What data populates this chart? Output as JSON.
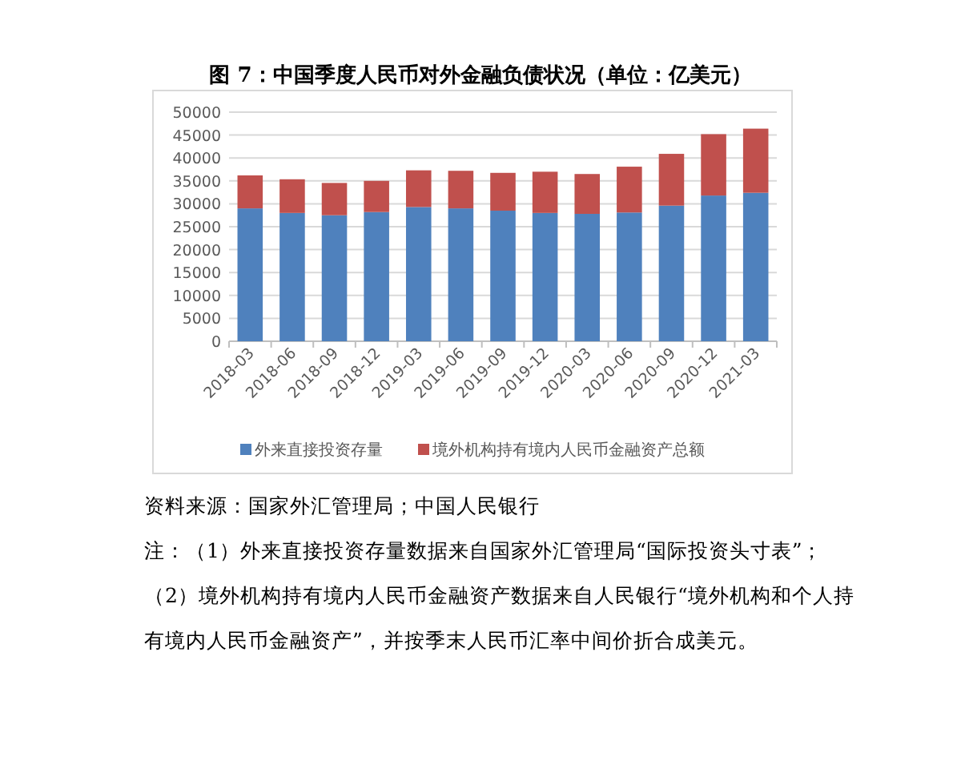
{
  "chart_data": {
    "type": "bar",
    "title": "图 7：中国季度人民币对外金融负债状况（单位：亿美元）",
    "categories": [
      "2018-03",
      "2018-06",
      "2018-09",
      "2018-12",
      "2019-03",
      "2019-06",
      "2019-09",
      "2019-12",
      "2020-03",
      "2020-06",
      "2020-09",
      "2020-12",
      "2021-03"
    ],
    "series": [
      {
        "name": "外来直接投资存量",
        "color": "#4f81bd",
        "values": [
          29000,
          28000,
          27500,
          28200,
          29300,
          29000,
          28500,
          28000,
          27800,
          28100,
          29600,
          31800,
          32400
        ]
      },
      {
        "name": "境外机构持有境内人民币金融资产总额",
        "color": "#c0504d",
        "values": [
          7200,
          7350,
          7050,
          6800,
          8000,
          8200,
          8250,
          9000,
          8700,
          10000,
          11300,
          13400,
          14000
        ]
      }
    ],
    "stacked": true,
    "ylim": [
      0,
      50000
    ],
    "yticks": [
      0,
      5000,
      10000,
      15000,
      20000,
      25000,
      30000,
      35000,
      40000,
      45000,
      50000
    ],
    "grid": "y",
    "legend": "bottom",
    "annotations": [
      "资料来源：国家外汇管理局；中国人民银行",
      "注：（1）外来直接投资存量数据来自国家外汇管理局“国际投资头寸表”；",
      "（2）境外机构持有境内人民币金融资产数据来自人民银行“境外机构和个人持有境内人民币金融资产”，并按季末人民币汇率中间价折合成美元。"
    ]
  }
}
